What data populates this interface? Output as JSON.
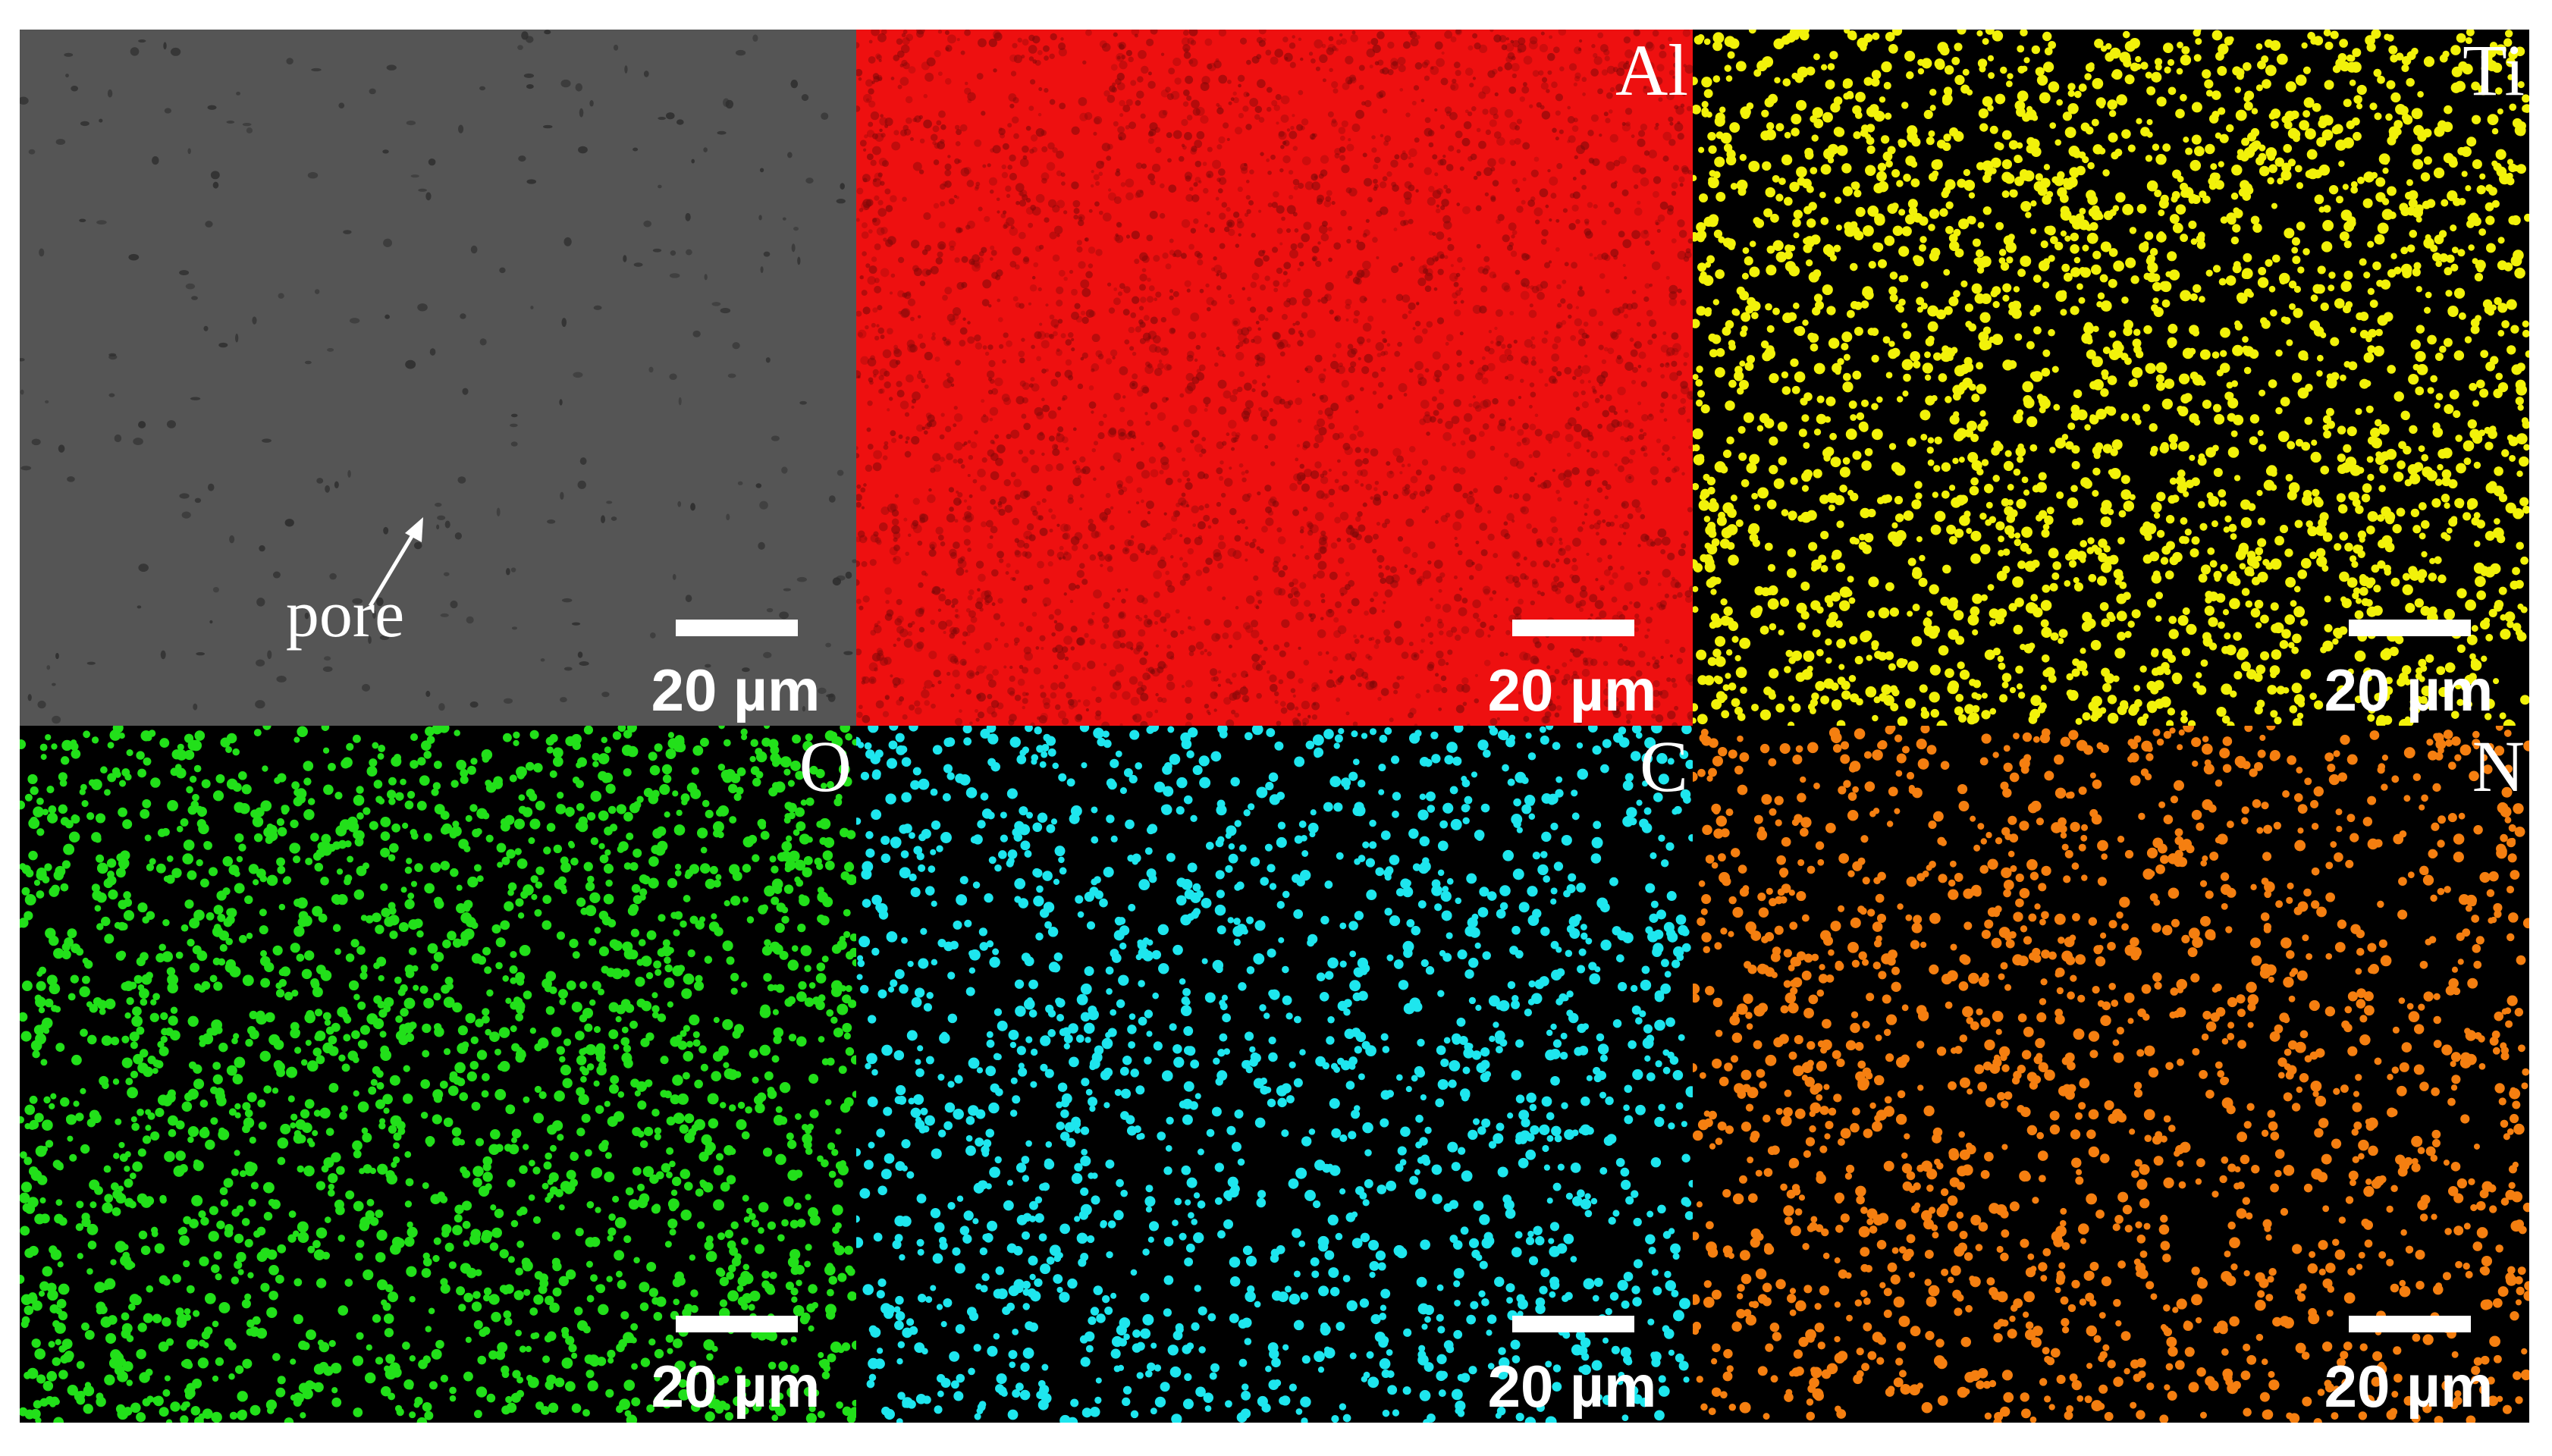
{
  "panels": [
    {
      "annotation": "pore",
      "scale_bar": "20 µm",
      "color": "#555555"
    },
    {
      "label": "Al",
      "scale_bar": "20 µm",
      "color": "#ee1010"
    },
    {
      "label": "Ti",
      "scale_bar": "20 µm",
      "color": "#f2f20a"
    },
    {
      "label": "O",
      "scale_bar": "20 µm",
      "color": "#22e01a"
    },
    {
      "label": "C",
      "scale_bar": "20 µm",
      "color": "#1ee6ee"
    },
    {
      "label": "N",
      "scale_bar": "20 µm",
      "color": "#f57f10"
    }
  ]
}
